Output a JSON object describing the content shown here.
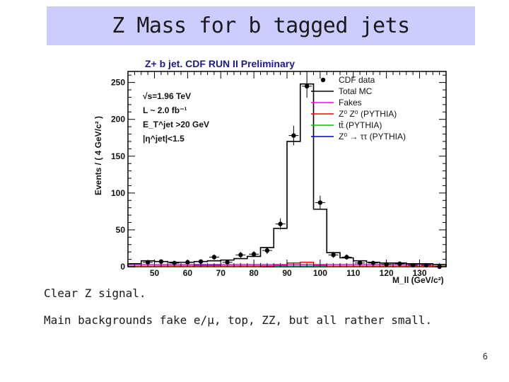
{
  "slide": {
    "title": "Z Mass for b tagged jets",
    "bullets": [
      "Clear Z signal.",
      "Main backgrounds fake e/μ, top, ZZ, but all rather small."
    ],
    "page_number": "6"
  },
  "chart_data": {
    "type": "histogram",
    "title": "Z+ b jet. CDF RUN II Preliminary",
    "xlabel": "M_ll (GeV/c²)",
    "ylabel": "Events / ( 4 GeV/c² )",
    "xlim": [
      42,
      138
    ],
    "ylim": [
      0,
      265
    ],
    "x_ticks": [
      50,
      60,
      70,
      80,
      90,
      100,
      110,
      120,
      130
    ],
    "y_ticks": [
      0,
      50,
      100,
      150,
      200,
      250
    ],
    "info_text": [
      "√s=1.96 TeV",
      "L ~ 2.0 fb⁻¹",
      "E_T^jet >20 GeV",
      "|η^jet|<1.5"
    ],
    "bin_edges": [
      42,
      46,
      50,
      54,
      58,
      62,
      66,
      70,
      74,
      78,
      82,
      86,
      90,
      94,
      98,
      102,
      106,
      110,
      114,
      118,
      122,
      126,
      130,
      134,
      138
    ],
    "series": [
      {
        "name": "CDF data",
        "style": "points",
        "color": "#000000",
        "x": [
          48,
          52,
          56,
          60,
          64,
          68,
          72,
          76,
          80,
          84,
          88,
          92,
          96,
          100,
          104,
          108,
          112,
          116,
          120,
          124,
          128,
          132,
          136
        ],
        "values": [
          6,
          7,
          5,
          6,
          7,
          13,
          6,
          16,
          17,
          22,
          58,
          178,
          245,
          87,
          16,
          13,
          5,
          5,
          3,
          4,
          2,
          2,
          0
        ],
        "errors": [
          2.5,
          2.7,
          2.3,
          2.5,
          2.7,
          3.6,
          2.5,
          4,
          4.1,
          4.7,
          7.6,
          13.3,
          15.7,
          9.3,
          4,
          3.6,
          2.3,
          2.3,
          1.8,
          2,
          1.5,
          1.5,
          0
        ]
      },
      {
        "name": "Total MC",
        "style": "histogram",
        "color": "#000000",
        "values": [
          4,
          8,
          7,
          6,
          6,
          7,
          8,
          9,
          11,
          14,
          26,
          52,
          170,
          248,
          78,
          19,
          12,
          8,
          6,
          5,
          5,
          4,
          4,
          3
        ]
      },
      {
        "name": "Fakes",
        "style": "histogram",
        "color": "#ff00ff",
        "values": [
          3,
          3,
          3,
          3,
          3,
          3,
          3,
          3,
          3,
          3,
          3,
          3,
          3,
          3,
          3,
          3,
          3,
          3,
          3,
          3,
          3,
          3,
          3,
          3
        ]
      },
      {
        "name": "Z⁰ Z⁰ (PYTHIA)",
        "style": "histogram",
        "color": "#ff0000",
        "values": [
          0,
          0,
          0,
          0,
          0,
          0,
          0,
          0,
          0,
          0,
          1,
          2,
          5,
          6,
          2,
          0,
          0,
          0,
          0,
          0,
          0,
          0,
          0,
          0
        ]
      },
      {
        "name": "tt̄ (PYTHIA)",
        "style": "histogram",
        "color": "#00cc00",
        "values": [
          1,
          1,
          1,
          1,
          1,
          1,
          1,
          1,
          1,
          1,
          1,
          1,
          1,
          1,
          1,
          1,
          1,
          1,
          1,
          1,
          1,
          1,
          1,
          1
        ]
      },
      {
        "name": "Z⁰ → ττ (PYTHIA)",
        "style": "histogram",
        "color": "#0000cc",
        "values": [
          0,
          0,
          1,
          1,
          1,
          2,
          2,
          1,
          1,
          1,
          0,
          0,
          0,
          0,
          0,
          0,
          0,
          0,
          0,
          0,
          0,
          0,
          0,
          0
        ]
      }
    ]
  }
}
